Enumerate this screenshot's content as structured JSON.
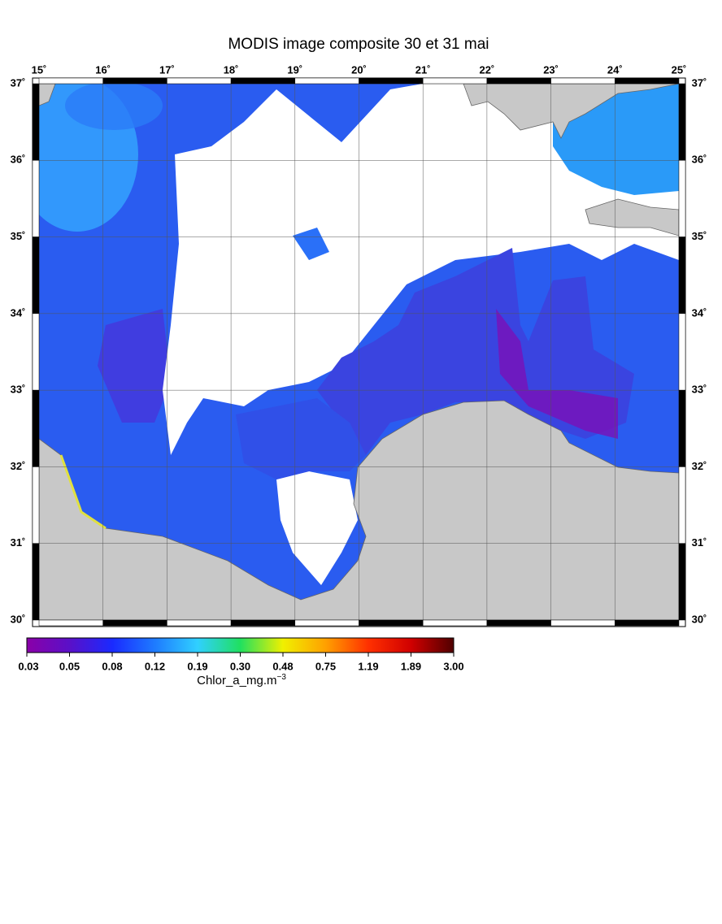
{
  "title": "MODIS image composite 30 et 31 mai",
  "map": {
    "lon_labels": [
      "15˚",
      "16˚",
      "17˚",
      "18˚",
      "19˚",
      "20˚",
      "21˚",
      "22˚",
      "23˚",
      "24˚",
      "25˚"
    ],
    "lat_labels": [
      "37˚",
      "36˚",
      "35˚",
      "34˚",
      "33˚",
      "32˚",
      "31˚",
      "30˚"
    ]
  },
  "colorbar": {
    "labels": [
      "0.03",
      "0.05",
      "0.08",
      "0.12",
      "0.19",
      "0.30",
      "0.48",
      "0.75",
      "1.19",
      "1.89",
      "3.00"
    ],
    "title": "Chlor_a_mg.m",
    "title_exponent": "−3"
  }
}
